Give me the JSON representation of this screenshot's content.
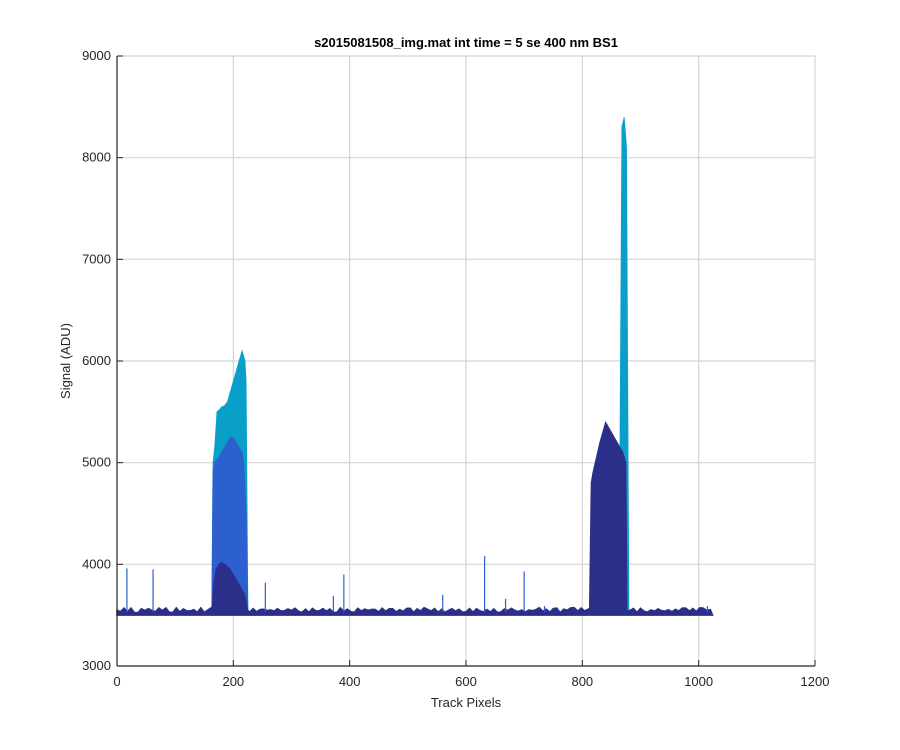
{
  "chart_data": {
    "type": "area",
    "title": "s2015081508_img.mat int time = 5 se  400 nm BS1",
    "xlabel": "Track Pixels",
    "ylabel": "Signal (ADU)",
    "xlim": [
      0,
      1200
    ],
    "ylim": [
      3000,
      9000
    ],
    "xticks": [
      "0",
      "200",
      "400",
      "600",
      "800",
      "1000",
      "1200"
    ],
    "yticks": [
      "3000",
      "4000",
      "5000",
      "6000",
      "7000",
      "8000",
      "9000"
    ],
    "grid": true,
    "legend": "none",
    "baseline": 3530,
    "x_end": 1024,
    "series": [
      {
        "color": "#0a9fc9",
        "x": [
          163,
          165,
          168,
          172,
          176,
          180,
          185,
          190,
          195,
          200,
          205,
          210,
          215,
          220,
          222,
          225,
          863,
          868,
          872,
          876,
          880
        ],
        "y": [
          3530,
          5000,
          5150,
          5500,
          5520,
          5550,
          5560,
          5600,
          5700,
          5800,
          5900,
          6000,
          6100,
          6000,
          5800,
          3530,
          3530,
          8300,
          8400,
          8100,
          3530
        ]
      },
      {
        "color": "#2d60cf",
        "x": [
          163,
          165,
          168,
          175,
          180,
          185,
          190,
          195,
          200,
          205,
          210,
          215,
          218,
          222,
          225
        ],
        "y": [
          3530,
          4900,
          5000,
          5050,
          5100,
          5150,
          5200,
          5250,
          5250,
          5200,
          5150,
          5100,
          5000,
          4500,
          3530
        ]
      },
      {
        "color": "#2b2f8a",
        "x": [
          163,
          166,
          170,
          175,
          180,
          185,
          190,
          195,
          200,
          205,
          210,
          215,
          220,
          225,
          812,
          815,
          818,
          822,
          826,
          830,
          835,
          840,
          845,
          850,
          855,
          860,
          865,
          870,
          875,
          877
        ],
        "y": [
          3530,
          3800,
          3950,
          4000,
          4020,
          4000,
          3980,
          3950,
          3900,
          3850,
          3800,
          3750,
          3700,
          3530,
          3530,
          4800,
          4900,
          5000,
          5100,
          5200,
          5300,
          5400,
          5350,
          5300,
          5250,
          5200,
          5150,
          5100,
          5000,
          3530
        ]
      }
    ],
    "spikes": [
      {
        "x": 17,
        "y": 3960
      },
      {
        "x": 62,
        "y": 3950
      },
      {
        "x": 255,
        "y": 3820
      },
      {
        "x": 372,
        "y": 3690
      },
      {
        "x": 390,
        "y": 3900
      },
      {
        "x": 560,
        "y": 3700
      },
      {
        "x": 632,
        "y": 4080
      },
      {
        "x": 668,
        "y": 3660
      },
      {
        "x": 700,
        "y": 3930
      },
      {
        "x": 735,
        "y": 3590
      },
      {
        "x": 1015,
        "y": 3590
      }
    ]
  }
}
